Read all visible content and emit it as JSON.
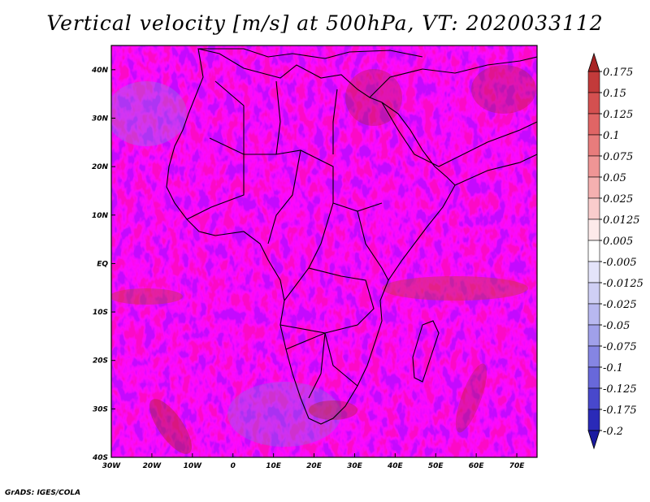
{
  "title": "Vertical velocity [m/s] at 500hPa, VT: 2020033112",
  "footer": "GrADS: IGES/COLA",
  "axes": {
    "lon_labels": [
      "30W",
      "20W",
      "10W",
      "0",
      "10E",
      "20E",
      "30E",
      "40E",
      "50E",
      "60E",
      "70E"
    ],
    "lon_values": [
      -30,
      -20,
      -10,
      0,
      10,
      20,
      30,
      40,
      50,
      60,
      70
    ],
    "lat_labels": [
      "40N",
      "30N",
      "20N",
      "10N",
      "EQ",
      "10S",
      "20S",
      "30S",
      "40S"
    ],
    "lat_values": [
      40,
      30,
      20,
      10,
      0,
      -10,
      -20,
      -30,
      -40
    ],
    "lon_range": [
      -30,
      75
    ],
    "lat_range": [
      -40,
      45
    ]
  },
  "colorbar": {
    "labels": [
      "0.175",
      "0.15",
      "0.125",
      "0.1",
      "0.075",
      "0.05",
      "0.025",
      "0.0125",
      "0.005",
      "-0.005",
      "-0.0125",
      "-0.025",
      "-0.05",
      "-0.075",
      "-0.1",
      "-0.125",
      "-0.175",
      "-0.2"
    ],
    "colors": [
      "#a82323",
      "#c23a3a",
      "#d45050",
      "#e06565",
      "#e87c7c",
      "#ef9595",
      "#f5b0b0",
      "#f9cccc",
      "#fdeaea",
      "#ffffff",
      "#e4e4fa",
      "#cfcff5",
      "#b8b8f0",
      "#a0a0ea",
      "#8585e3",
      "#6868da",
      "#4848cc",
      "#2a2ab8",
      "#1a1aa0"
    ],
    "top_color": "#a82323",
    "bottom_color": "#1a1aa0"
  }
}
